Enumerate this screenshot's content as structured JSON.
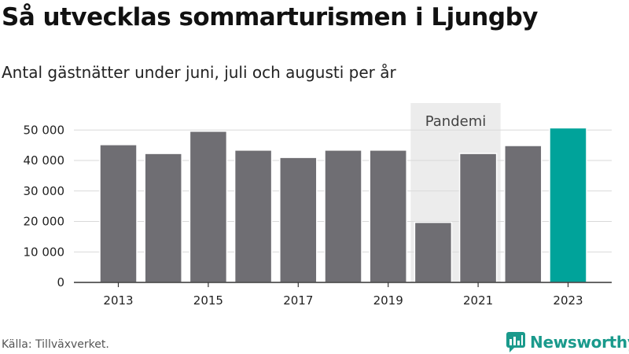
{
  "header": {
    "title": "Så utvecklas sommarturismen i Ljungby",
    "subtitle": "Antal gästnätter under juni, juli och augusti per år"
  },
  "footer": {
    "source": "Källa: Tillväxverket.",
    "brand": "Newsworthy"
  },
  "colors": {
    "bar": "#6f6e73",
    "highlight": "#00a39a",
    "band": "#ececec",
    "grid": "#d9d9d9",
    "brand": "#1a9a8c"
  },
  "chart_data": {
    "type": "bar",
    "title": "Så utvecklas sommarturismen i Ljungby",
    "subtitle": "Antal gästnätter under juni, juli och augusti per år",
    "categories": [
      2013,
      2014,
      2015,
      2016,
      2017,
      2018,
      2019,
      2020,
      2021,
      2022,
      2023
    ],
    "values": [
      45200,
      42300,
      49600,
      43400,
      41000,
      43400,
      43400,
      19700,
      42300,
      44900,
      50700
    ],
    "highlight_category": 2023,
    "x_tick_labels": [
      "2013",
      "2015",
      "2017",
      "2019",
      "2021",
      "2023"
    ],
    "y_ticks": [
      0,
      10000,
      20000,
      30000,
      40000,
      50000
    ],
    "y_tick_labels": [
      "0",
      "10 000",
      "20 000",
      "30 000",
      "40 000",
      "50 000"
    ],
    "ylim": [
      0,
      55000
    ],
    "grid": true,
    "annotation": {
      "label": "Pandemi",
      "from": 2020,
      "to": 2021
    }
  }
}
